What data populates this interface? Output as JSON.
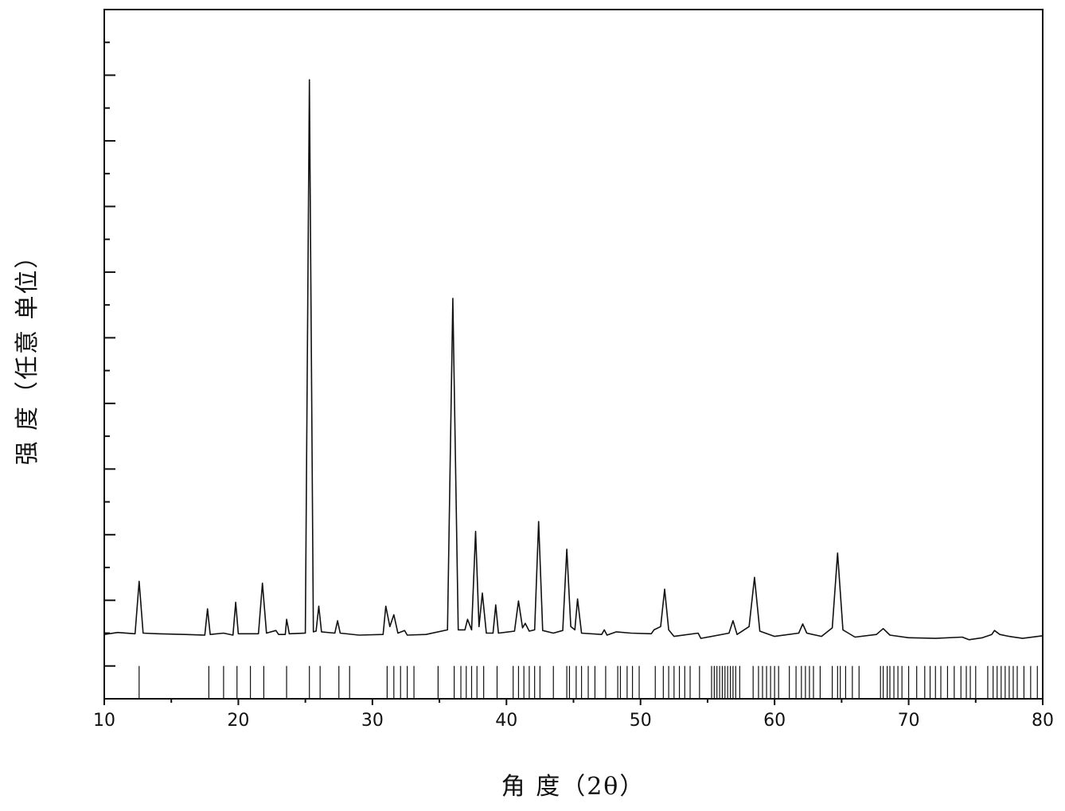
{
  "chart_data": {
    "type": "line",
    "xlabel": "角 度（2θ）",
    "ylabel": "强 度（任意 单位）",
    "color": "#111111",
    "x": [
      10,
      11,
      12.3,
      12.6,
      12.9,
      14,
      16,
      17.5,
      17.7,
      17.9,
      18.9,
      19.6,
      19.8,
      20,
      21.5,
      21.8,
      22.1,
      22.8,
      23.0,
      23.5,
      23.6,
      23.8,
      25.0,
      25.3,
      25.6,
      25.8,
      26.0,
      26.2,
      27.2,
      27.4,
      27.6,
      29,
      30.8,
      31.0,
      31.3,
      31.6,
      31.9,
      32.4,
      32.6,
      34,
      35.6,
      36.0,
      36.4,
      36.9,
      37.1,
      37.4,
      37.7,
      37.95,
      38.2,
      38.5,
      39.0,
      39.2,
      39.4,
      40.6,
      40.9,
      41.2,
      41.4,
      41.7,
      42.1,
      42.4,
      42.7,
      43.5,
      44.2,
      44.5,
      44.8,
      45.1,
      45.3,
      45.6,
      47.1,
      47.3,
      47.5,
      48.2,
      49.3,
      50.8,
      51.0,
      51.5,
      51.8,
      52.1,
      52.5,
      54.3,
      54.5,
      56.6,
      56.9,
      57.2,
      58.1,
      58.5,
      58.9,
      60,
      61.8,
      62.1,
      62.4,
      63.5,
      64.3,
      64.7,
      65.1,
      65.5,
      66,
      67.6,
      68.1,
      68.6,
      70,
      72,
      74,
      74.5,
      75.5,
      76.2,
      76.4,
      76.8,
      77.5,
      78.5,
      80
    ],
    "values": [
      98,
      101,
      99,
      179,
      100,
      99,
      98,
      97,
      137,
      98,
      100,
      97,
      147,
      99,
      99,
      176,
      100,
      104,
      98,
      98,
      121,
      99,
      100,
      943,
      102,
      103,
      141,
      102,
      100,
      119,
      100,
      97,
      98,
      141,
      110,
      128,
      100,
      104,
      97,
      98,
      105,
      610,
      105,
      105,
      121,
      105,
      255,
      110,
      161,
      100,
      100,
      143,
      100,
      103,
      149,
      108,
      115,
      103,
      105,
      270,
      104,
      100,
      104,
      228,
      110,
      105,
      152,
      100,
      98,
      105,
      97,
      102,
      100,
      99,
      105,
      110,
      167,
      105,
      95,
      100,
      92,
      100,
      119,
      98,
      110,
      185,
      103,
      95,
      100,
      114,
      100,
      95,
      108,
      222,
      105,
      100,
      94,
      98,
      107,
      97,
      93,
      92,
      94,
      90,
      93,
      98,
      104,
      98,
      95,
      92,
      96
    ],
    "reference_x": [
      12.6,
      17.8,
      18.9,
      19.9,
      20.9,
      21.9,
      23.6,
      25.3,
      26.1,
      27.5,
      28.3,
      31.1,
      31.6,
      32.1,
      32.6,
      33.1,
      34.9,
      36.1,
      36.6,
      37.0,
      37.4,
      37.8,
      38.3,
      39.3,
      40.5,
      40.9,
      41.3,
      41.7,
      42.1,
      42.5,
      43.5,
      44.5,
      44.7,
      45.2,
      45.6,
      46.1,
      46.6,
      47.4,
      48.3,
      48.5,
      49.0,
      49.4,
      49.9,
      51.1,
      51.7,
      52.1,
      52.5,
      52.9,
      53.3,
      53.7,
      54.4,
      55.3,
      55.5,
      55.7,
      55.9,
      56.1,
      56.3,
      56.5,
      56.7,
      56.9,
      57.1,
      57.4,
      58.4,
      58.8,
      59.1,
      59.4,
      59.7,
      60.0,
      60.3,
      61.1,
      61.6,
      62.0,
      62.3,
      62.6,
      62.9,
      63.4,
      64.3,
      64.7,
      64.9,
      65.3,
      65.8,
      66.3,
      67.9,
      68.1,
      68.4,
      68.6,
      68.9,
      69.2,
      69.5,
      70.0,
      70.6,
      71.2,
      71.6,
      72.0,
      72.4,
      72.9,
      73.4,
      73.9,
      74.3,
      74.6,
      75.0,
      75.9,
      76.3,
      76.6,
      76.9,
      77.2,
      77.5,
      77.8,
      78.1,
      78.6,
      79.1,
      79.6
    ],
    "reference_height": 50,
    "xlim": [
      10,
      80
    ],
    "xticks": [
      10,
      20,
      30,
      40,
      50,
      60,
      70,
      80
    ],
    "xminorticks": [
      15,
      25,
      35,
      45,
      55,
      65,
      75
    ],
    "ylim": [
      0,
      1050
    ],
    "yticks": [
      50,
      150,
      250,
      350,
      450,
      550,
      650,
      750,
      850,
      950,
      1050
    ],
    "yminorticks": [
      100,
      200,
      300,
      400,
      500,
      600,
      700,
      800,
      900,
      1000
    ]
  }
}
